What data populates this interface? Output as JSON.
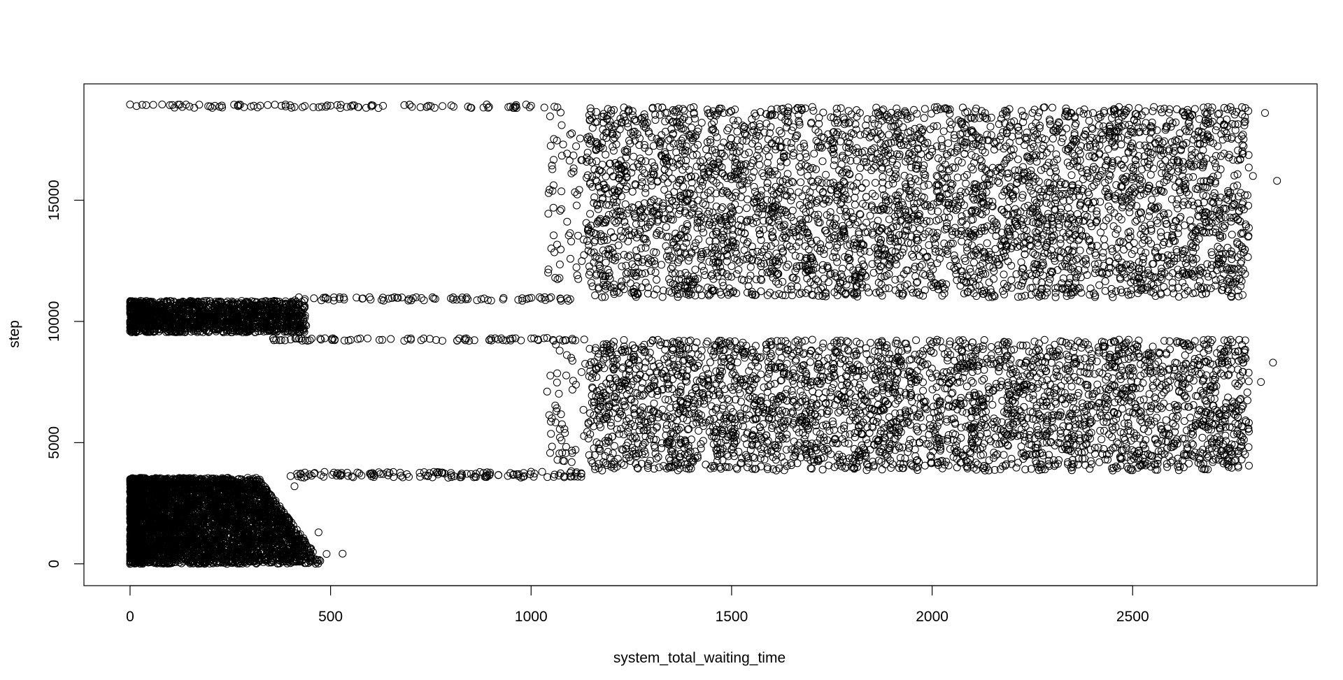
{
  "chart_data": {
    "type": "scatter",
    "title": "",
    "xlabel": "system_total_waiting_time",
    "ylabel": "step",
    "xlim": [
      -115,
      2960
    ],
    "ylim": [
      -900,
      19800
    ],
    "x_ticks": [
      0,
      500,
      1000,
      1500,
      2000,
      2500
    ],
    "y_ticks": [
      0,
      5000,
      10000,
      15000
    ],
    "grid": false,
    "legend": "none",
    "marker": "open-circle",
    "point_color": "#000000",
    "clusters": [
      {
        "x_range": [
          0,
          480
        ],
        "y_range": [
          0,
          3550
        ],
        "density": "very high",
        "note": "x spread shrinks as step increases"
      },
      {
        "x_range": [
          0,
          450
        ],
        "y_range": [
          9550,
          10850
        ],
        "density": "very high"
      },
      {
        "x_range": [
          1140,
          2790
        ],
        "y_range": [
          3850,
          9250
        ],
        "density": "high"
      },
      {
        "x_range": [
          1140,
          2790
        ],
        "y_range": [
          11000,
          18850
        ],
        "density": "high"
      },
      {
        "x_range": [
          400,
          1140
        ],
        "y_range": [
          3550,
          3800
        ],
        "density": "sparse transition"
      },
      {
        "x_range": [
          350,
          1140
        ],
        "y_range": [
          9200,
          9300
        ],
        "density": "sparse transition"
      },
      {
        "x_range": [
          400,
          1140
        ],
        "y_range": [
          10850,
          11000
        ],
        "density": "sparse transition"
      },
      {
        "x_range": [
          0,
          1080
        ],
        "y_range": [
          18800,
          18950
        ],
        "density": "sparse transition"
      }
    ],
    "sample_points": [
      [
        0,
        0
      ],
      [
        50,
        200
      ],
      [
        120,
        450
      ],
      [
        240,
        820
      ],
      [
        360,
        1500
      ],
      [
        470,
        1300
      ],
      [
        530,
        420
      ],
      [
        490,
        410
      ],
      [
        440,
        420
      ],
      [
        300,
        2400
      ],
      [
        410,
        3200
      ],
      [
        20,
        3500
      ],
      [
        0,
        9600
      ],
      [
        150,
        10000
      ],
      [
        300,
        10300
      ],
      [
        420,
        10400
      ],
      [
        400,
        9800
      ],
      [
        430,
        10200
      ],
      [
        600,
        10900
      ],
      [
        800,
        10950
      ],
      [
        1050,
        11000
      ],
      [
        700,
        9300
      ],
      [
        900,
        9300
      ],
      [
        1040,
        9320
      ],
      [
        600,
        3700
      ],
      [
        800,
        3750
      ],
      [
        1000,
        3800
      ],
      [
        1100,
        3820
      ],
      [
        1200,
        4000
      ],
      [
        1500,
        6000
      ],
      [
        1800,
        8000
      ],
      [
        2100,
        5000
      ],
      [
        2400,
        7000
      ],
      [
        2700,
        4200
      ],
      [
        2790,
        4050
      ],
      [
        2850,
        8300
      ],
      [
        2820,
        7500
      ],
      [
        1250,
        12000
      ],
      [
        1600,
        15000
      ],
      [
        2000,
        17000
      ],
      [
        2300,
        14000
      ],
      [
        2600,
        12000
      ],
      [
        2800,
        16000
      ],
      [
        2830,
        18600
      ],
      [
        2860,
        15800
      ],
      [
        2750,
        11600
      ],
      [
        0,
        18950
      ],
      [
        40,
        18920
      ],
      [
        80,
        18950
      ],
      [
        120,
        18940
      ],
      [
        200,
        18870
      ],
      [
        500,
        18900
      ],
      [
        750,
        18880
      ],
      [
        1000,
        18900
      ],
      [
        1080,
        17300
      ],
      [
        1100,
        13300
      ],
      [
        1060,
        11800
      ],
      [
        1100,
        8500
      ]
    ]
  }
}
